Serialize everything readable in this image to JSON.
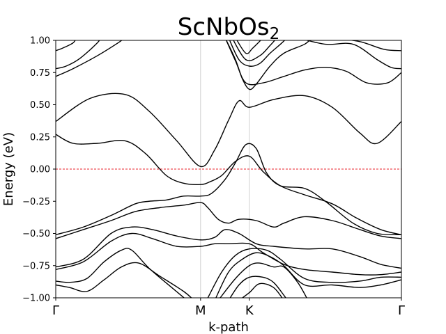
{
  "chart_data": {
    "type": "line",
    "title": "ScNbOs",
    "title_subscript": "2",
    "xlabel": "k-path",
    "ylabel": "Energy (eV)",
    "ylim": [
      -1.0,
      1.0
    ],
    "xlim": [
      0,
      1
    ],
    "yticks": [
      1.0,
      0.75,
      0.5,
      0.25,
      0.0,
      -0.25,
      -0.5,
      -0.75,
      -1.0
    ],
    "ytick_labels": [
      "1.00",
      "0.75",
      "0.50",
      "0.25",
      "0.00",
      "−0.25",
      "−0.50",
      "−0.75",
      "−1.00"
    ],
    "kpoints": [
      {
        "label": "Γ",
        "x": 0.0
      },
      {
        "label": "M",
        "x": 0.419
      },
      {
        "label": "K",
        "x": 0.56
      },
      {
        "label": "Γ",
        "x": 1.0
      }
    ],
    "fermi_level": 0.0,
    "grid": false,
    "series": [
      {
        "values": [
          [
            0.0,
            0.37
          ],
          [
            0.1,
            0.55
          ],
          [
            0.2,
            0.58
          ],
          [
            0.27,
            0.45
          ],
          [
            0.35,
            0.22
          ],
          [
            0.419,
            0.02
          ],
          [
            0.46,
            0.15
          ],
          [
            0.5,
            0.38
          ],
          [
            0.53,
            0.53
          ],
          [
            0.56,
            0.48
          ],
          [
            0.63,
            0.54
          ],
          [
            0.72,
            0.57
          ],
          [
            0.8,
            0.48
          ],
          [
            0.88,
            0.28
          ],
          [
            0.93,
            0.2
          ],
          [
            1.0,
            0.37
          ]
        ]
      },
      {
        "values": [
          [
            0.0,
            0.27
          ],
          [
            0.05,
            0.2
          ],
          [
            0.12,
            0.2
          ],
          [
            0.2,
            0.22
          ],
          [
            0.26,
            0.12
          ],
          [
            0.32,
            -0.05
          ],
          [
            0.37,
            -0.11
          ],
          [
            0.419,
            -0.12
          ],
          [
            0.445,
            -0.1
          ],
          [
            0.48,
            -0.05
          ],
          [
            0.52,
            0.06
          ],
          [
            0.56,
            0.1
          ],
          [
            0.6,
            -0.02
          ],
          [
            0.65,
            -0.13
          ],
          [
            0.72,
            -0.2
          ],
          [
            0.8,
            -0.27
          ],
          [
            0.87,
            -0.38
          ],
          [
            0.94,
            -0.47
          ],
          [
            1.0,
            -0.51
          ]
        ]
      },
      {
        "values": [
          [
            0.0,
            -0.51
          ],
          [
            0.08,
            -0.45
          ],
          [
            0.16,
            -0.36
          ],
          [
            0.23,
            -0.27
          ],
          [
            0.27,
            -0.25
          ],
          [
            0.32,
            -0.24
          ],
          [
            0.37,
            -0.21
          ],
          [
            0.419,
            -0.21
          ],
          [
            0.45,
            -0.19
          ],
          [
            0.49,
            -0.08
          ],
          [
            0.52,
            0.05
          ],
          [
            0.55,
            0.19
          ],
          [
            0.58,
            0.16
          ],
          [
            0.61,
            -0.03
          ],
          [
            0.65,
            -0.13
          ],
          [
            0.72,
            -0.15
          ],
          [
            0.78,
            -0.25
          ],
          [
            0.86,
            -0.42
          ],
          [
            0.93,
            -0.5
          ],
          [
            1.0,
            -0.51
          ]
        ]
      },
      {
        "values": [
          [
            0.0,
            -0.54
          ],
          [
            0.08,
            -0.47
          ],
          [
            0.16,
            -0.4
          ],
          [
            0.23,
            -0.33
          ],
          [
            0.3,
            -0.3
          ],
          [
            0.37,
            -0.28
          ],
          [
            0.419,
            -0.26
          ],
          [
            0.44,
            -0.3
          ],
          [
            0.47,
            -0.39
          ],
          [
            0.5,
            -0.42
          ],
          [
            0.53,
            -0.39
          ],
          [
            0.58,
            -0.4
          ],
          [
            0.63,
            -0.45
          ],
          [
            0.66,
            -0.42
          ],
          [
            0.72,
            -0.37
          ],
          [
            0.8,
            -0.4
          ],
          [
            0.88,
            -0.47
          ],
          [
            0.94,
            -0.52
          ],
          [
            1.0,
            -0.54
          ]
        ]
      },
      {
        "values": [
          [
            0.0,
            -0.76
          ],
          [
            0.08,
            -0.7
          ],
          [
            0.16,
            -0.5
          ],
          [
            0.22,
            -0.45
          ],
          [
            0.28,
            -0.47
          ],
          [
            0.35,
            -0.52
          ],
          [
            0.419,
            -0.55
          ],
          [
            0.46,
            -0.53
          ],
          [
            0.49,
            -0.47
          ],
          [
            0.53,
            -0.5
          ],
          [
            0.58,
            -0.58
          ],
          [
            0.63,
            -0.6
          ],
          [
            0.72,
            -0.62
          ],
          [
            0.8,
            -0.62
          ],
          [
            0.88,
            -0.68
          ],
          [
            0.94,
            -0.74
          ],
          [
            1.0,
            -0.77
          ]
        ]
      },
      {
        "values": [
          [
            0.0,
            -0.78
          ],
          [
            0.08,
            -0.72
          ],
          [
            0.16,
            -0.56
          ],
          [
            0.22,
            -0.5
          ],
          [
            0.28,
            -0.54
          ],
          [
            0.35,
            -0.6
          ],
          [
            0.419,
            -0.6
          ],
          [
            0.46,
            -0.58
          ],
          [
            0.5,
            -0.58
          ],
          [
            0.56,
            -0.58
          ],
          [
            0.6,
            -0.65
          ],
          [
            0.66,
            -0.74
          ],
          [
            0.72,
            -0.78
          ],
          [
            0.8,
            -0.8
          ],
          [
            0.88,
            -0.82
          ],
          [
            0.94,
            -0.82
          ],
          [
            1.0,
            -0.8
          ]
        ]
      },
      {
        "values": [
          [
            0.0,
            -0.87
          ],
          [
            0.04,
            -0.88
          ],
          [
            0.09,
            -0.85
          ],
          [
            0.14,
            -0.72
          ],
          [
            0.19,
            -0.63
          ],
          [
            0.22,
            -0.63
          ],
          [
            0.27,
            -0.77
          ],
          [
            0.34,
            -0.93
          ],
          [
            0.38,
            -1.02
          ]
        ]
      },
      {
        "values": [
          [
            0.0,
            -0.9
          ],
          [
            0.04,
            -0.92
          ],
          [
            0.09,
            -0.95
          ],
          [
            0.14,
            -0.86
          ],
          [
            0.19,
            -0.76
          ],
          [
            0.24,
            -0.73
          ],
          [
            0.3,
            -0.83
          ],
          [
            0.37,
            -0.95
          ],
          [
            0.4,
            -1.02
          ]
        ]
      },
      {
        "values": [
          [
            0.44,
            -1.0
          ],
          [
            0.48,
            -0.8
          ],
          [
            0.52,
            -0.67
          ],
          [
            0.56,
            -0.62
          ],
          [
            0.61,
            -0.63
          ],
          [
            0.65,
            -0.7
          ],
          [
            0.72,
            -0.85
          ],
          [
            0.8,
            -0.88
          ],
          [
            0.88,
            -0.87
          ],
          [
            0.94,
            -0.84
          ],
          [
            1.0,
            -0.84
          ]
        ]
      },
      {
        "values": [
          [
            0.46,
            -1.02
          ],
          [
            0.5,
            -0.8
          ],
          [
            0.54,
            -0.7
          ],
          [
            0.58,
            -0.65
          ],
          [
            0.62,
            -0.68
          ],
          [
            0.66,
            -0.75
          ],
          [
            0.72,
            -0.9
          ],
          [
            0.8,
            -0.9
          ],
          [
            0.88,
            -0.92
          ],
          [
            0.94,
            -0.9
          ],
          [
            1.0,
            -0.86
          ]
        ]
      },
      {
        "values": [
          [
            0.47,
            -1.02
          ],
          [
            0.52,
            -0.85
          ],
          [
            0.56,
            -0.75
          ],
          [
            0.59,
            -0.73
          ],
          [
            0.63,
            -0.76
          ],
          [
            0.66,
            -0.76
          ],
          [
            0.7,
            -0.88
          ],
          [
            0.73,
            -1.02
          ]
        ]
      },
      {
        "values": [
          [
            0.5,
            -1.02
          ],
          [
            0.53,
            -0.9
          ],
          [
            0.56,
            -0.84
          ],
          [
            0.6,
            -0.84
          ],
          [
            0.63,
            -0.88
          ],
          [
            0.66,
            -0.98
          ],
          [
            0.67,
            -1.02
          ]
        ]
      },
      {
        "values": [
          [
            0.53,
            -1.02
          ],
          [
            0.56,
            -0.96
          ],
          [
            0.59,
            -0.89
          ],
          [
            0.63,
            -0.92
          ],
          [
            0.66,
            -1.02
          ]
        ]
      },
      {
        "values": [
          [
            0.49,
            1.02
          ],
          [
            0.52,
            0.85
          ],
          [
            0.54,
            0.7
          ],
          [
            0.56,
            0.62
          ],
          [
            0.58,
            0.66
          ],
          [
            0.62,
            0.8
          ],
          [
            0.66,
            0.9
          ],
          [
            0.72,
            0.97
          ],
          [
            0.74,
            1.02
          ]
        ]
      },
      {
        "values": [
          [
            0.5,
            1.02
          ],
          [
            0.53,
            0.85
          ],
          [
            0.56,
            0.8
          ],
          [
            0.59,
            0.82
          ],
          [
            0.62,
            0.9
          ],
          [
            0.65,
            0.97
          ],
          [
            0.67,
            1.02
          ]
        ]
      },
      {
        "values": [
          [
            0.51,
            1.02
          ],
          [
            0.55,
            0.85
          ],
          [
            0.59,
            0.88
          ],
          [
            0.62,
            0.96
          ],
          [
            0.64,
            1.02
          ]
        ]
      },
      {
        "values": [
          [
            0.52,
            1.02
          ],
          [
            0.55,
            0.9
          ],
          [
            0.57,
            0.94
          ],
          [
            0.6,
            1.02
          ]
        ]
      },
      {
        "values": [
          [
            0.49,
            1.02
          ],
          [
            0.52,
            0.84
          ],
          [
            0.55,
            0.67
          ],
          [
            0.6,
            0.67
          ],
          [
            0.66,
            0.72
          ],
          [
            0.72,
            0.77
          ],
          [
            0.78,
            0.79
          ],
          [
            0.84,
            0.76
          ],
          [
            0.9,
            0.67
          ],
          [
            0.96,
            0.67
          ],
          [
            1.0,
            0.75
          ]
        ]
      },
      {
        "values": [
          [
            0.7,
            1.02
          ],
          [
            0.78,
            0.97
          ],
          [
            0.86,
            0.97
          ],
          [
            0.93,
            0.85
          ],
          [
            0.97,
            0.79
          ],
          [
            1.0,
            0.78
          ]
        ]
      },
      {
        "values": [
          [
            0.8,
            1.02
          ],
          [
            0.88,
            0.99
          ],
          [
            0.95,
            0.93
          ],
          [
            1.0,
            0.92
          ]
        ]
      },
      {
        "values": [
          [
            0.0,
            0.72
          ],
          [
            0.05,
            0.78
          ],
          [
            0.12,
            0.88
          ],
          [
            0.18,
            0.98
          ],
          [
            0.2,
            1.02
          ]
        ]
      },
      {
        "values": [
          [
            0.0,
            0.78
          ],
          [
            0.03,
            0.8
          ],
          [
            0.07,
            0.86
          ],
          [
            0.12,
            0.98
          ],
          [
            0.13,
            1.02
          ]
        ]
      },
      {
        "values": [
          [
            0.0,
            0.92
          ],
          [
            0.02,
            0.94
          ],
          [
            0.05,
            0.98
          ],
          [
            0.06,
            1.02
          ]
        ]
      }
    ]
  }
}
